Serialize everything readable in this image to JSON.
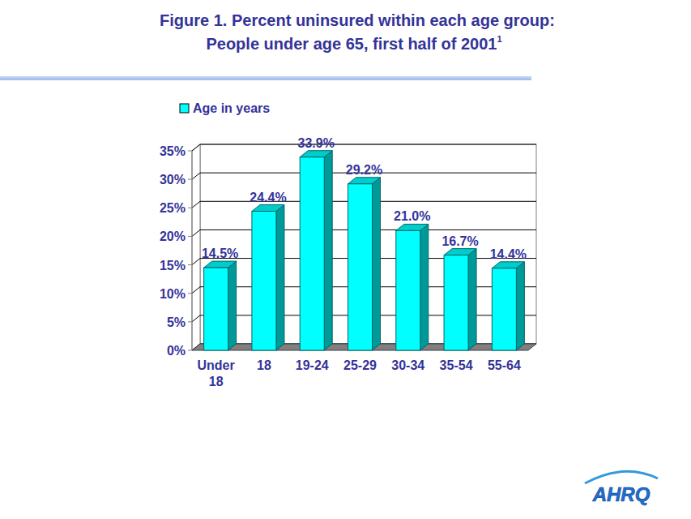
{
  "chart_data": {
    "type": "bar",
    "title": "Figure 1. Percent uninsured within each age group:",
    "subtitle": "People under age 65, first half of 2001",
    "title_footnote": "1",
    "logo": "AHRQ",
    "categories": [
      "Under 18",
      "18",
      "19-24",
      "25-29",
      "30-34",
      "35-54",
      "55-64"
    ],
    "series": [
      {
        "name": "Age in years",
        "color": "#00ffff",
        "values": [
          14.5,
          24.4,
          33.9,
          29.2,
          21.0,
          16.7,
          14.4
        ],
        "value_labels": [
          "14.5%",
          "24.4%",
          "33.9%",
          "29.2%",
          "21.0%",
          "16.7%",
          "14.4%"
        ]
      }
    ],
    "ylim": [
      0,
      35
    ],
    "yticks": [
      {
        "value": 0,
        "label": "0%"
      },
      {
        "value": 5,
        "label": "5%"
      },
      {
        "value": 10,
        "label": "10%"
      },
      {
        "value": 15,
        "label": "15%"
      },
      {
        "value": 20,
        "label": "20%"
      },
      {
        "value": 25,
        "label": "25%"
      },
      {
        "value": 30,
        "label": "30%"
      },
      {
        "value": 35,
        "label": "35%"
      }
    ],
    "grid": true,
    "data_labels": true,
    "legend": "top-left"
  }
}
